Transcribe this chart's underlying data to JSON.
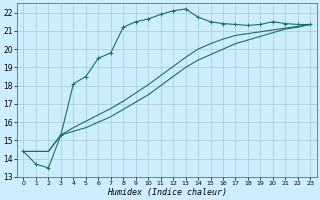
{
  "title": "",
  "xlabel": "Humidex (Indice chaleur)",
  "bg_color": "#cceeff",
  "grid_color": "#aacccc",
  "line_color": "#1a6e6a",
  "xlim": [
    -0.5,
    23.5
  ],
  "ylim": [
    13,
    22.5
  ],
  "yticks": [
    13,
    14,
    15,
    16,
    17,
    18,
    19,
    20,
    21,
    22
  ],
  "xticks": [
    0,
    1,
    2,
    3,
    4,
    5,
    6,
    7,
    8,
    9,
    10,
    11,
    12,
    13,
    14,
    15,
    16,
    17,
    18,
    19,
    20,
    21,
    22,
    23
  ],
  "line1_x": [
    0,
    1,
    2,
    3,
    4,
    5,
    6,
    7,
    8,
    9,
    10,
    11,
    12,
    13,
    14,
    15,
    16,
    17,
    18,
    19,
    20,
    21,
    22,
    23
  ],
  "line1_y": [
    14.4,
    13.7,
    13.5,
    15.3,
    18.1,
    18.5,
    19.5,
    19.8,
    21.2,
    21.5,
    21.65,
    21.9,
    22.1,
    22.2,
    21.75,
    21.5,
    21.4,
    21.35,
    21.3,
    21.35,
    21.5,
    21.4,
    21.35,
    21.35
  ],
  "line2_x": [
    0,
    1,
    2,
    3,
    4,
    5,
    6,
    7,
    8,
    9,
    10,
    11,
    12,
    13,
    14,
    15,
    16,
    17,
    18,
    19,
    20,
    21,
    22,
    23
  ],
  "line2_y": [
    14.4,
    14.4,
    14.4,
    15.3,
    15.5,
    15.7,
    16.0,
    16.3,
    16.7,
    17.1,
    17.5,
    18.0,
    18.5,
    19.0,
    19.4,
    19.7,
    20.0,
    20.3,
    20.5,
    20.7,
    20.9,
    21.1,
    21.2,
    21.35
  ],
  "line3_x": [
    0,
    1,
    2,
    3,
    4,
    5,
    6,
    7,
    8,
    9,
    10,
    11,
    12,
    13,
    14,
    15,
    16,
    17,
    18,
    19,
    20,
    21,
    22,
    23
  ],
  "line3_y": [
    14.4,
    14.4,
    14.4,
    15.3,
    15.7,
    16.05,
    16.4,
    16.75,
    17.15,
    17.6,
    18.05,
    18.55,
    19.05,
    19.55,
    20.0,
    20.3,
    20.55,
    20.75,
    20.85,
    20.95,
    21.05,
    21.15,
    21.25,
    21.35
  ]
}
